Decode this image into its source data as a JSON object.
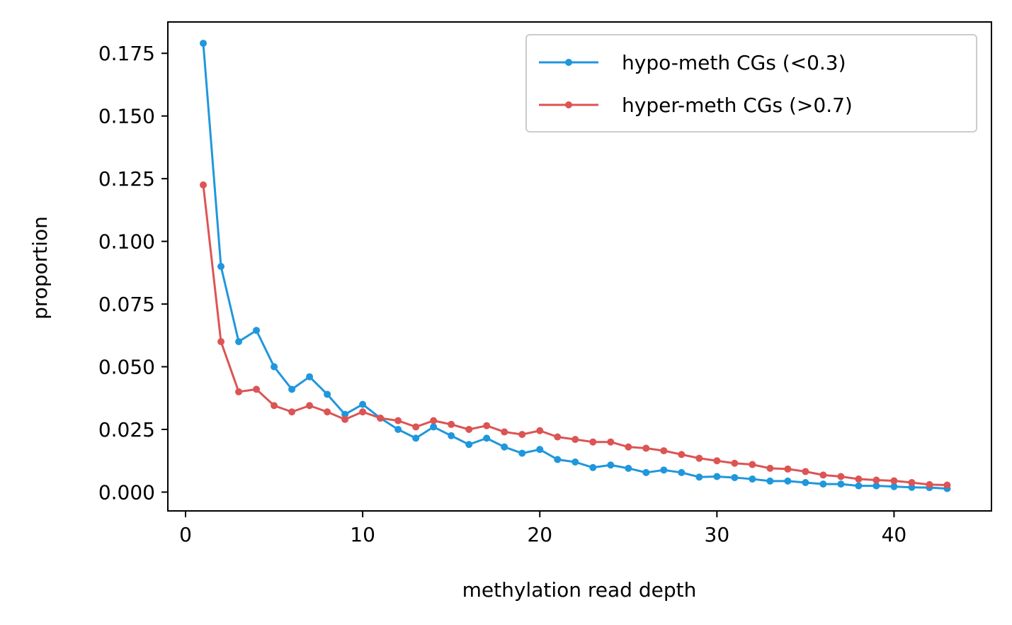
{
  "chart_data": {
    "type": "line",
    "title": "",
    "xlabel": "methylation read depth",
    "ylabel": "proportion",
    "xlim": [
      -1,
      45.5
    ],
    "ylim": [
      -0.0075,
      0.1875
    ],
    "xticks": [
      0,
      10,
      20,
      30,
      40
    ],
    "xtick_labels": [
      "0",
      "10",
      "20",
      "30",
      "40"
    ],
    "yticks": [
      0.0,
      0.025,
      0.05,
      0.075,
      0.1,
      0.125,
      0.15,
      0.175
    ],
    "ytick_labels": [
      "0.000",
      "0.025",
      "0.050",
      "0.075",
      "0.100",
      "0.125",
      "0.150",
      "0.175"
    ],
    "grid": false,
    "legend_position": "top-right",
    "x": [
      1,
      2,
      3,
      4,
      5,
      6,
      7,
      8,
      9,
      10,
      11,
      12,
      13,
      14,
      15,
      16,
      17,
      18,
      19,
      20,
      21,
      22,
      23,
      24,
      25,
      26,
      27,
      28,
      29,
      30,
      31,
      32,
      33,
      34,
      35,
      36,
      37,
      38,
      39,
      40,
      41,
      42,
      43
    ],
    "series": [
      {
        "name": "hypo-meth CGs (<0.3)",
        "color": "#1f97dd",
        "values": [
          0.179,
          0.09,
          0.06,
          0.0645,
          0.05,
          0.041,
          0.046,
          0.039,
          0.031,
          0.035,
          0.0295,
          0.025,
          0.0215,
          0.026,
          0.0225,
          0.019,
          0.0215,
          0.018,
          0.0155,
          0.017,
          0.013,
          0.012,
          0.0098,
          0.0108,
          0.0095,
          0.0078,
          0.0088,
          0.0078,
          0.006,
          0.0062,
          0.0058,
          0.0052,
          0.0044,
          0.0044,
          0.0038,
          0.0032,
          0.0032,
          0.0025,
          0.0025,
          0.0022,
          0.0019,
          0.0018,
          0.0014
        ]
      },
      {
        "name": "hyper-meth CGs (>0.7)",
        "color": "#dc5454",
        "values": [
          0.1225,
          0.06,
          0.04,
          0.041,
          0.0345,
          0.032,
          0.0345,
          0.032,
          0.029,
          0.032,
          0.0295,
          0.0285,
          0.026,
          0.0285,
          0.027,
          0.025,
          0.0265,
          0.024,
          0.023,
          0.0245,
          0.022,
          0.021,
          0.02,
          0.02,
          0.018,
          0.0175,
          0.0165,
          0.015,
          0.0135,
          0.0125,
          0.0115,
          0.011,
          0.0095,
          0.0092,
          0.0082,
          0.0068,
          0.0062,
          0.0052,
          0.0048,
          0.0045,
          0.0038,
          0.003,
          0.0028
        ]
      }
    ]
  }
}
